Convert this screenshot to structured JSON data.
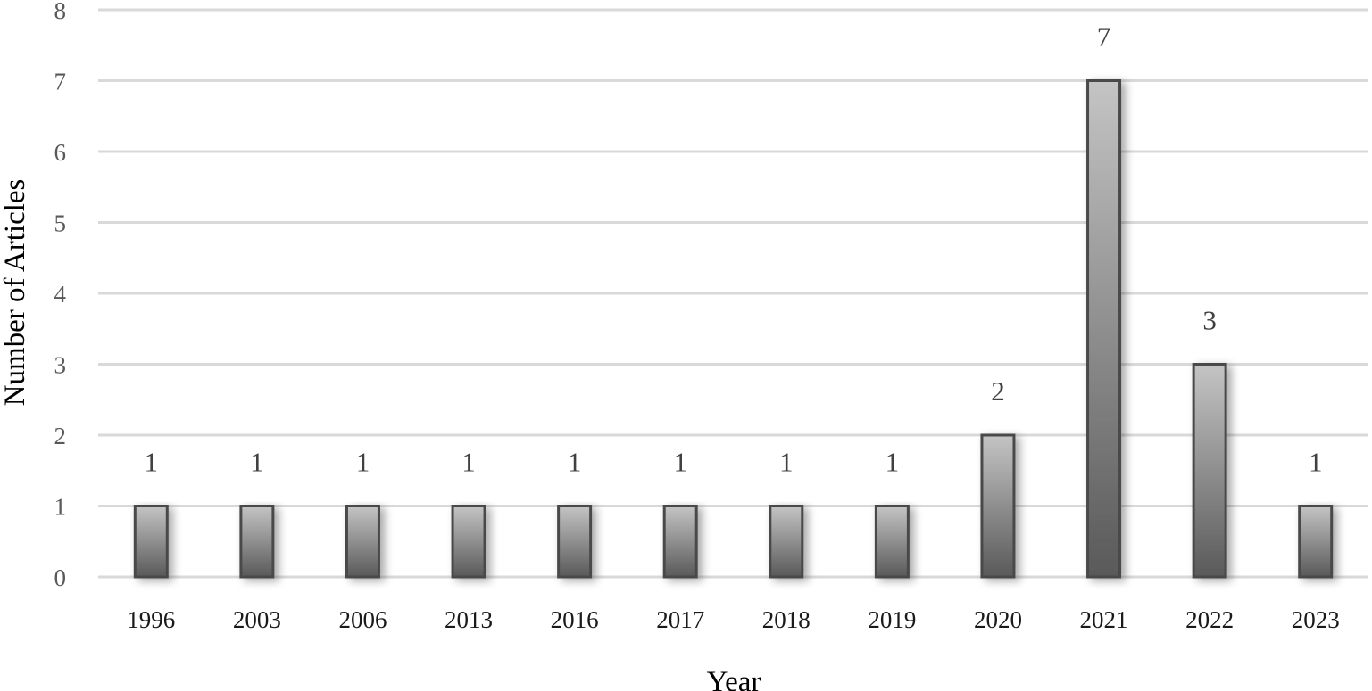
{
  "chart_data": {
    "type": "bar",
    "title": "",
    "xlabel": "Year",
    "ylabel": "Number of Articles",
    "categories": [
      "1996",
      "2003",
      "2006",
      "2013",
      "2016",
      "2017",
      "2018",
      "2019",
      "2020",
      "2021",
      "2022",
      "2023"
    ],
    "values": [
      1,
      1,
      1,
      1,
      1,
      1,
      1,
      1,
      2,
      7,
      3,
      1
    ],
    "ylim": [
      0,
      8
    ],
    "yticks": [
      "0",
      "1",
      "2",
      "3",
      "4",
      "5",
      "6",
      "7",
      "8"
    ],
    "data_labels": [
      "1",
      "1",
      "1",
      "1",
      "1",
      "1",
      "1",
      "1",
      "2",
      "7",
      "3",
      "1"
    ],
    "grid": true,
    "legend": "none",
    "colors": {
      "bar_top": "#c4c4c4",
      "bar_bottom": "#595959",
      "bar_border": "#4a4a4a",
      "gridline": "#d9d9d9"
    }
  }
}
